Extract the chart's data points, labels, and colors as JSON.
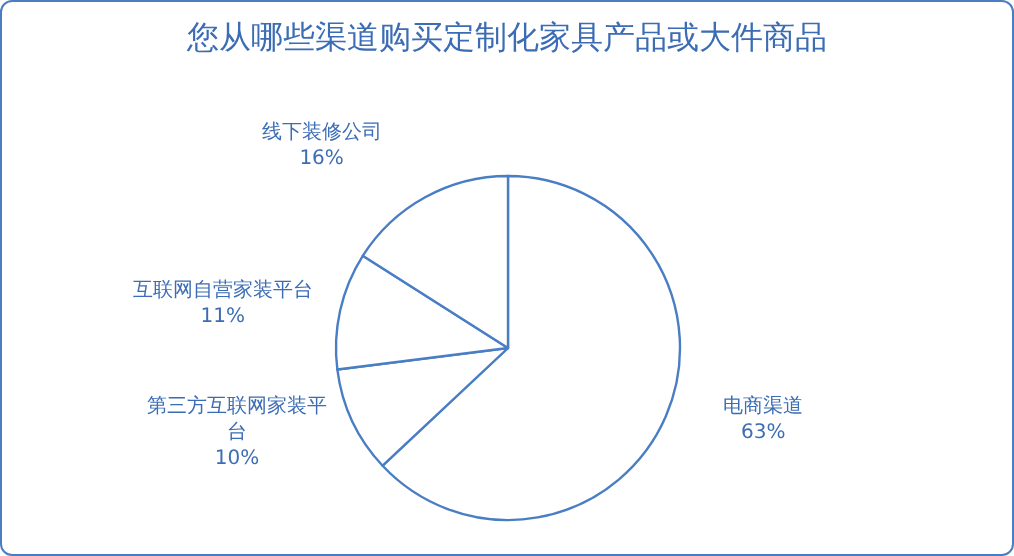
{
  "chart_data": {
    "type": "pie",
    "title": "您从哪些渠道购买定制化家具产品或大件商品",
    "categories": [
      "电商渠道",
      "第三方互联网家装平台",
      "互联网自营家装平台",
      "线下装修公司"
    ],
    "values": [
      63,
      10,
      11,
      16
    ],
    "colors": [
      "#ffffff",
      "#ffffff",
      "#ffffff",
      "#ffffff"
    ],
    "value_labels": [
      "63%",
      "10%",
      "11%",
      "16%"
    ]
  }
}
